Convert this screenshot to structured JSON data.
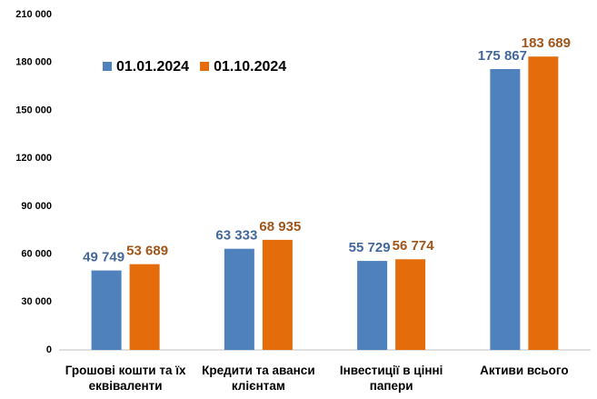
{
  "chart_data": {
    "type": "bar",
    "categories": [
      "Грошові кошти та їх еквіваленти",
      "Кредити та аванси клієнтам",
      "Інвестиції в цінні папери",
      "Активи всього"
    ],
    "series": [
      {
        "name": "01.01.2024",
        "color": "#4f81bd",
        "label_color": "#44679a",
        "values": [
          49749,
          63333,
          55729,
          175867
        ],
        "value_labels": [
          "49 749",
          "63 333",
          "55 729",
          "175 867"
        ]
      },
      {
        "name": "01.10.2024",
        "color": "#e46c0a",
        "label_color": "#a0561a",
        "values": [
          53689,
          68935,
          56774,
          183689
        ],
        "value_labels": [
          "53 689",
          "68 935",
          "56 774",
          "183 689"
        ]
      }
    ],
    "ylim": [
      0,
      210000
    ],
    "yticks": [
      0,
      {
        "value": 30000,
        "label": "30 000"
      },
      {
        "value": 60000,
        "label": "60 000"
      },
      {
        "value": 90000,
        "label": "90 000"
      },
      {
        "value": 120000,
        "label": "120 000"
      },
      {
        "value": 150000,
        "label": "150 000"
      },
      {
        "value": 180000,
        "label": "180 000"
      },
      {
        "value": 210000,
        "label": "210 000"
      }
    ],
    "grid": false,
    "legend": "top-left"
  }
}
